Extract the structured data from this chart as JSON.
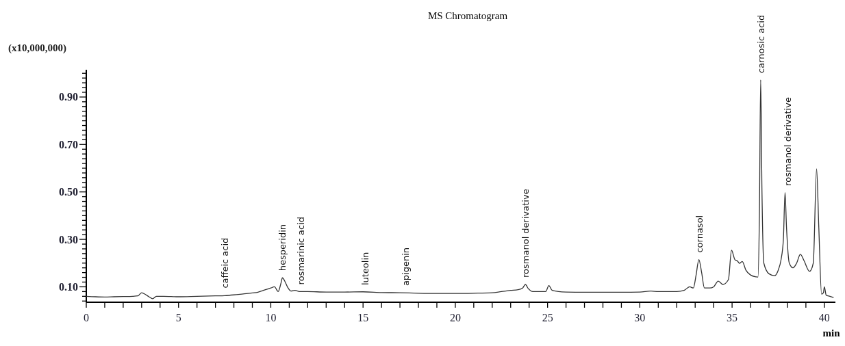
{
  "chart_data": {
    "type": "line",
    "title": "MS Chromatogram",
    "xlabel": "min",
    "ylabel": "(x10,000,000)",
    "xlim": [
      0,
      40.6
    ],
    "ylim": [
      0.035,
      1.015
    ],
    "xticks": [
      0,
      {
        "value": 1,
        "label": null
      },
      {
        "value": 2,
        "label": null
      },
      {
        "value": 3,
        "label": null
      },
      {
        "value": 4,
        "label": null
      },
      5,
      {
        "value": 6,
        "label": null
      },
      {
        "value": 7,
        "label": null
      },
      {
        "value": 8,
        "label": null
      },
      {
        "value": 9,
        "label": null
      },
      10,
      {
        "value": 11,
        "label": null
      },
      {
        "value": 12,
        "label": null
      },
      {
        "value": 13,
        "label": null
      },
      {
        "value": 14,
        "label": null
      },
      15,
      {
        "value": 16,
        "label": null
      },
      {
        "value": 17,
        "label": null
      },
      {
        "value": 18,
        "label": null
      },
      {
        "value": 19,
        "label": null
      },
      20,
      {
        "value": 21,
        "label": null
      },
      {
        "value": 22,
        "label": null
      },
      {
        "value": 23,
        "label": null
      },
      {
        "value": 24,
        "label": null
      },
      25,
      {
        "value": 26,
        "label": null
      },
      {
        "value": 27,
        "label": null
      },
      {
        "value": 28,
        "label": null
      },
      {
        "value": 29,
        "label": null
      },
      30,
      {
        "value": 31,
        "label": null
      },
      {
        "value": 32,
        "label": null
      },
      {
        "value": 33,
        "label": null
      },
      {
        "value": 34,
        "label": null
      },
      35,
      {
        "value": 36,
        "label": null
      },
      {
        "value": 37,
        "label": null
      },
      {
        "value": 38,
        "label": null
      },
      {
        "value": 39,
        "label": null
      },
      40
    ],
    "yticks": [
      {
        "value": 0.04,
        "label": null
      },
      {
        "value": 0.06,
        "label": null
      },
      {
        "value": 0.08,
        "label": null
      },
      {
        "value": 0.1,
        "label": "0.10"
      },
      {
        "value": 0.12,
        "label": null
      },
      {
        "value": 0.14,
        "label": null
      },
      {
        "value": 0.16,
        "label": null
      },
      {
        "value": 0.18,
        "label": null
      },
      {
        "value": 0.2,
        "label": null
      },
      {
        "value": 0.22,
        "label": null
      },
      {
        "value": 0.24,
        "label": null
      },
      {
        "value": 0.26,
        "label": null
      },
      {
        "value": 0.28,
        "label": null
      },
      {
        "value": 0.3,
        "label": "0.30"
      },
      {
        "value": 0.32,
        "label": null
      },
      {
        "value": 0.34,
        "label": null
      },
      {
        "value": 0.36,
        "label": null
      },
      {
        "value": 0.38,
        "label": null
      },
      {
        "value": 0.4,
        "label": null
      },
      {
        "value": 0.42,
        "label": null
      },
      {
        "value": 0.44,
        "label": null
      },
      {
        "value": 0.46,
        "label": null
      },
      {
        "value": 0.48,
        "label": null
      },
      {
        "value": 0.5,
        "label": "0.50"
      },
      {
        "value": 0.52,
        "label": null
      },
      {
        "value": 0.54,
        "label": null
      },
      {
        "value": 0.56,
        "label": null
      },
      {
        "value": 0.58,
        "label": null
      },
      {
        "value": 0.6,
        "label": null
      },
      {
        "value": 0.62,
        "label": null
      },
      {
        "value": 0.64,
        "label": null
      },
      {
        "value": 0.66,
        "label": null
      },
      {
        "value": 0.68,
        "label": null
      },
      {
        "value": 0.7,
        "label": "0.70"
      },
      {
        "value": 0.72,
        "label": null
      },
      {
        "value": 0.74,
        "label": null
      },
      {
        "value": 0.76,
        "label": null
      },
      {
        "value": 0.78,
        "label": null
      },
      {
        "value": 0.8,
        "label": null
      },
      {
        "value": 0.82,
        "label": null
      },
      {
        "value": 0.84,
        "label": null
      },
      {
        "value": 0.86,
        "label": null
      },
      {
        "value": 0.88,
        "label": null
      },
      {
        "value": 0.9,
        "label": "0.90"
      },
      {
        "value": 0.92,
        "label": null
      },
      {
        "value": 0.94,
        "label": null
      },
      {
        "value": 0.96,
        "label": null
      },
      {
        "value": 0.98,
        "label": null
      },
      {
        "value": 1.0,
        "label": null
      }
    ],
    "grid": false,
    "marker": "none",
    "line_style": "solid",
    "series": [
      {
        "color": "#333333",
        "x": [
          0,
          0.5,
          1,
          1.5,
          2,
          2.5,
          2.8,
          3.0,
          3.2,
          3.4,
          3.6,
          3.8,
          4.2,
          5,
          6,
          7,
          7.5,
          8,
          8.5,
          9,
          9.3,
          9.6,
          10.0,
          10.2,
          10.4,
          10.55,
          10.63,
          10.75,
          10.9,
          11.1,
          11.3,
          11.6,
          12,
          13,
          14,
          15,
          16,
          17,
          18,
          19,
          20,
          21,
          22,
          22.5,
          23,
          23.4,
          23.65,
          23.8,
          23.95,
          24.2,
          24.6,
          24.9,
          25.07,
          25.25,
          25.6,
          26,
          27,
          28,
          29,
          30,
          30.6,
          31,
          31.5,
          32,
          32.4,
          32.7,
          32.9,
          33.05,
          33.2,
          33.35,
          33.5,
          33.8,
          34.0,
          34.25,
          34.5,
          34.8,
          34.97,
          35.15,
          35.3,
          35.4,
          35.55,
          35.75,
          36.0,
          36.3,
          36.4,
          36.48,
          36.55,
          36.62,
          36.72,
          37.0,
          37.3,
          37.5,
          37.65,
          37.78,
          37.87,
          37.95,
          38.1,
          38.3,
          38.5,
          38.7,
          38.9,
          39.2,
          39.4,
          39.58,
          39.7,
          39.85,
          39.95,
          40.0,
          40.1,
          40.3,
          40.5
        ],
        "values": [
          0.06,
          0.058,
          0.057,
          0.058,
          0.059,
          0.06,
          0.062,
          0.075,
          0.068,
          0.058,
          0.05,
          0.06,
          0.06,
          0.058,
          0.06,
          0.062,
          0.063,
          0.066,
          0.07,
          0.074,
          0.077,
          0.085,
          0.095,
          0.1,
          0.08,
          0.115,
          0.138,
          0.125,
          0.1,
          0.082,
          0.085,
          0.08,
          0.08,
          0.078,
          0.078,
          0.079,
          0.076,
          0.075,
          0.073,
          0.072,
          0.072,
          0.073,
          0.075,
          0.08,
          0.085,
          0.088,
          0.095,
          0.11,
          0.093,
          0.08,
          0.08,
          0.08,
          0.105,
          0.085,
          0.08,
          0.078,
          0.077,
          0.077,
          0.077,
          0.078,
          0.082,
          0.08,
          0.08,
          0.08,
          0.085,
          0.1,
          0.095,
          0.15,
          0.215,
          0.16,
          0.095,
          0.095,
          0.1,
          0.124,
          0.11,
          0.13,
          0.254,
          0.215,
          0.208,
          0.199,
          0.207,
          0.17,
          0.15,
          0.142,
          0.141,
          0.4,
          0.972,
          0.5,
          0.2,
          0.155,
          0.147,
          0.17,
          0.213,
          0.3,
          0.497,
          0.35,
          0.2,
          0.18,
          0.2,
          0.237,
          0.21,
          0.165,
          0.2,
          0.597,
          0.35,
          0.069,
          0.075,
          0.1,
          0.065,
          0.06,
          0.055
        ]
      }
    ],
    "annotations": [
      {
        "text": "caffeic acid",
        "x": 7.5,
        "y": 0.065
      },
      {
        "text": "hesperidin",
        "x": 10.63,
        "y": 0.138
      },
      {
        "text": "rosmarinic acid",
        "x": 11.6,
        "y": 0.08
      },
      {
        "text": "luteolin",
        "x": 15.1,
        "y": 0.078
      },
      {
        "text": "apigenin",
        "x": 17.3,
        "y": 0.075
      },
      {
        "text": "rosmanol derivative",
        "x": 23.8,
        "y": 0.11
      },
      {
        "text": "cornasol",
        "x": 33.2,
        "y": 0.215
      },
      {
        "text": "carnosic acid",
        "x": 36.55,
        "y": 0.972
      },
      {
        "text": "rosmanol derivative",
        "x": 38.0,
        "y": 0.497
      }
    ]
  }
}
